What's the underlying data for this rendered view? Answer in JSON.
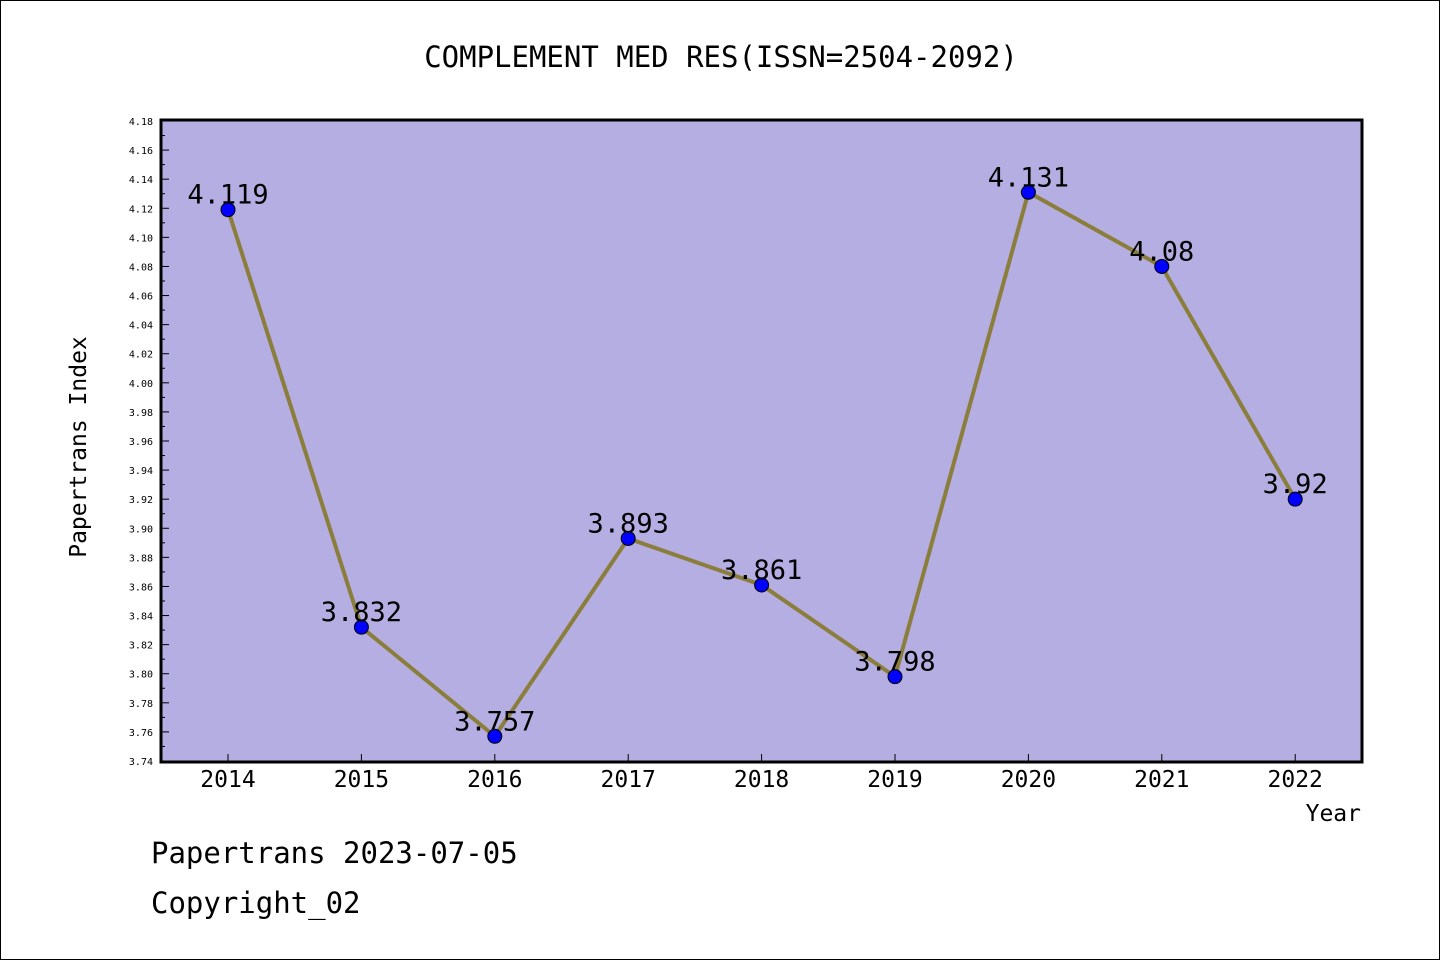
{
  "chart_data": {
    "type": "line",
    "title": "COMPLEMENT MED RES(ISSN=2504-2092)",
    "xlabel": "Year",
    "ylabel": "Papertrans Index",
    "categories": [
      "2014",
      "2015",
      "2016",
      "2017",
      "2018",
      "2019",
      "2020",
      "2021",
      "2022"
    ],
    "series": [
      {
        "values": [
          4.119,
          3.832,
          3.757,
          3.893,
          3.861,
          3.798,
          4.131,
          4.08,
          3.92
        ]
      }
    ],
    "data_labels": [
      "4.119",
      "3.832",
      "3.757",
      "3.893",
      "3.861",
      "3.798",
      "4.131",
      "4.08",
      "3.92"
    ],
    "ylim": [
      3.74,
      4.18
    ],
    "yticks": [
      "3.74",
      "3.76",
      "3.78",
      "3.80",
      "3.82",
      "3.84",
      "3.86",
      "3.88",
      "3.90",
      "3.92",
      "3.94",
      "3.96",
      "3.98",
      "4.00",
      "4.02",
      "4.04",
      "4.06",
      "4.08",
      "4.10",
      "4.12",
      "4.14",
      "4.16",
      "4.18"
    ],
    "grid": false,
    "colors": {
      "plot_background": "#b4aee2",
      "line": "#8b7d3a",
      "marker": "#0000ff"
    }
  },
  "footer": {
    "line1": "Papertrans 2023-07-05",
    "line2": "Copyright_02"
  }
}
